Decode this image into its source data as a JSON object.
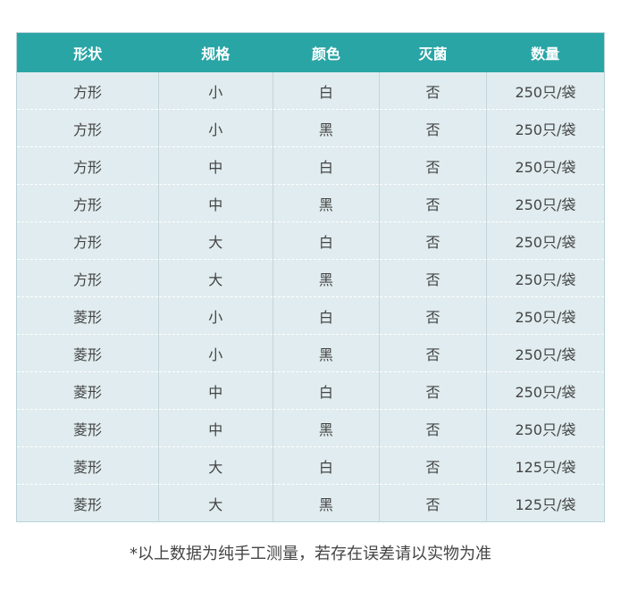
{
  "headers": [
    "形状",
    "规格",
    "颜色",
    "灭菌",
    "数量"
  ],
  "rows": [
    [
      "方形",
      "小",
      "白",
      "否",
      "250只/袋"
    ],
    [
      "方形",
      "小",
      "黑",
      "否",
      "250只/袋"
    ],
    [
      "方形",
      "中",
      "白",
      "否",
      "250只/袋"
    ],
    [
      "方形",
      "中",
      "黑",
      "否",
      "250只/袋"
    ],
    [
      "方形",
      "大",
      "白",
      "否",
      "250只/袋"
    ],
    [
      "方形",
      "大",
      "黑",
      "否",
      "250只/袋"
    ],
    [
      "菱形",
      "小",
      "白",
      "否",
      "250只/袋"
    ],
    [
      "菱形",
      "小",
      "黑",
      "否",
      "250只/袋"
    ],
    [
      "菱形",
      "中",
      "白",
      "否",
      "250只/袋"
    ],
    [
      "菱形",
      "中",
      "黑",
      "否",
      "250只/袋"
    ],
    [
      "菱形",
      "大",
      "白",
      "否",
      "125只/袋"
    ],
    [
      "菱形",
      "大",
      "黑",
      "否",
      "125只/袋"
    ]
  ],
  "note": "*以上数据为纯手工测量，若存在误差请以实物为准",
  "colors": {
    "header": "#2aa5a6",
    "body": "#e0ecef"
  }
}
